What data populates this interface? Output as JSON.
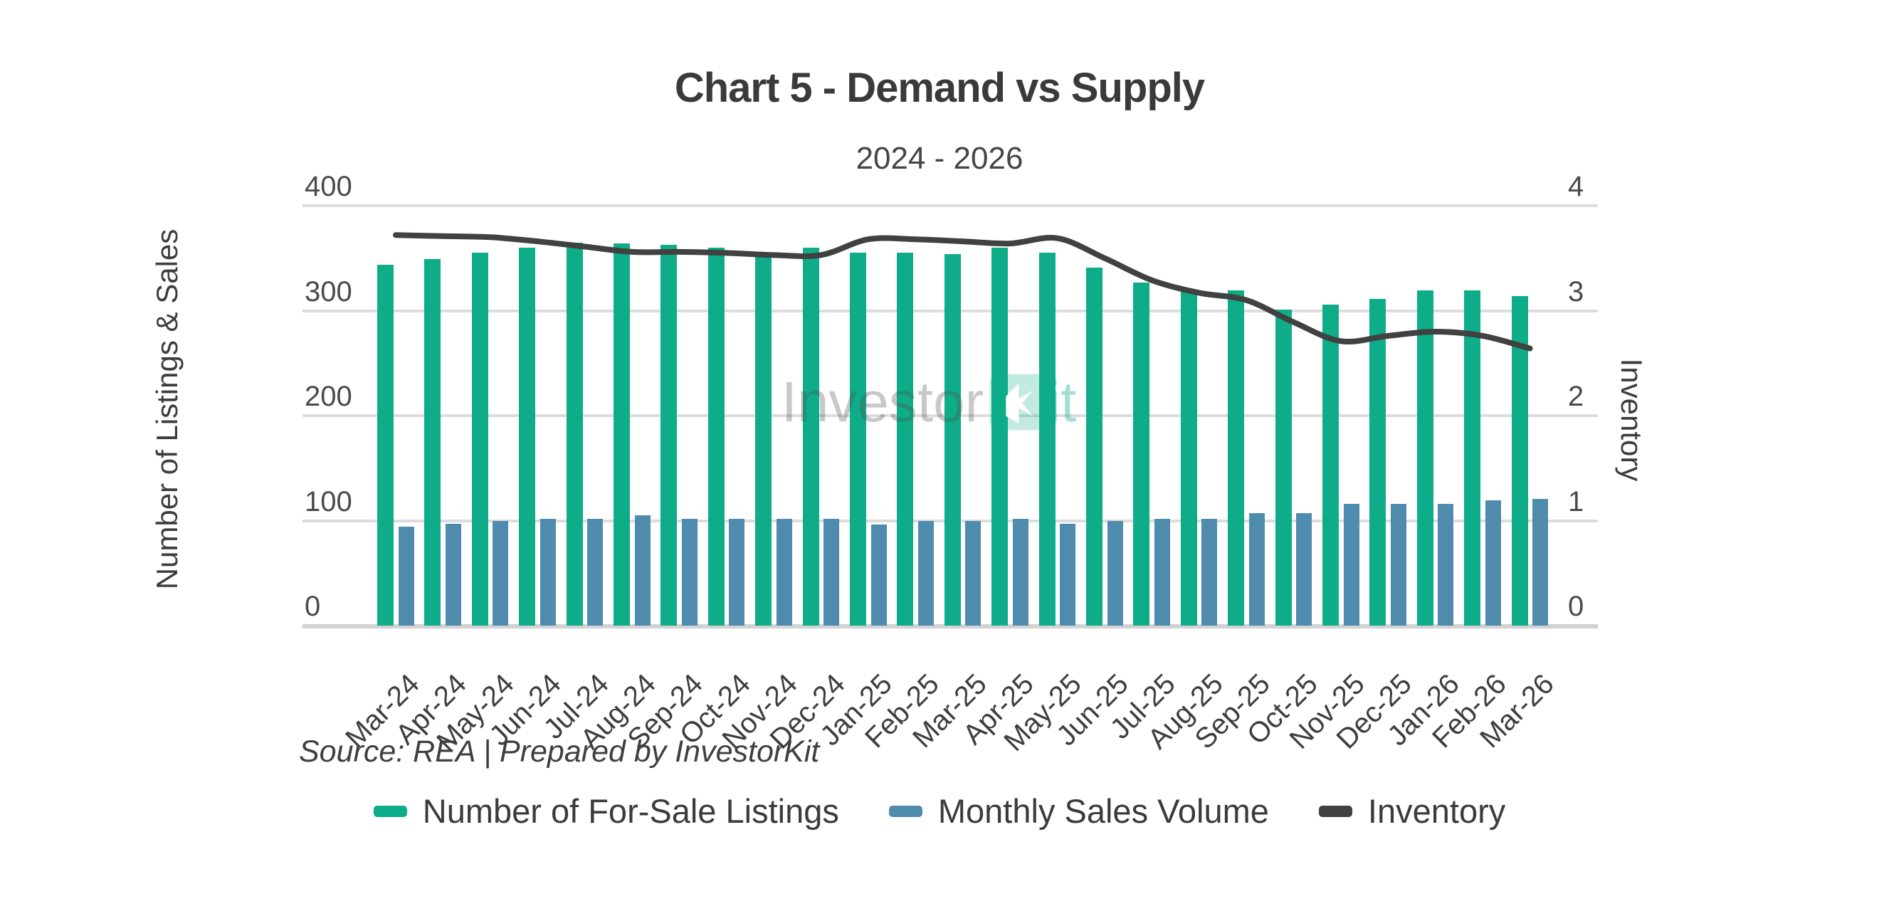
{
  "title": "Chart 5 - Demand vs Supply",
  "subtitle": "2024 - 2026",
  "source_note": "Source: REA | Prepared by InvestorKit",
  "watermark": {
    "gray_text": "Investor",
    "green_text": "it"
  },
  "axes": {
    "left_title": "Number of Listings & Sales",
    "right_title": "Inventory",
    "left_ticks": [
      "400",
      "300",
      "200",
      "100",
      "0"
    ],
    "right_ticks": [
      "4",
      "3",
      "2",
      "1",
      "0"
    ]
  },
  "legend": [
    {
      "label": "Number of For-Sale Listings",
      "color": "#0eac88"
    },
    {
      "label": "Monthly Sales Volume",
      "color": "#4e8bad"
    },
    {
      "label": "Inventory",
      "color": "#414141"
    }
  ],
  "colors": {
    "listings_bar": "#0eac88",
    "sales_bar": "#4e8bad",
    "inventory_line": "#414141",
    "gridline": "#dcdcdc",
    "text": "#3e3e3e"
  },
  "chart_data": {
    "type": "bar",
    "subtype": "combo-bar-line",
    "title": "Chart 5 - Demand vs Supply",
    "subtitle": "2024 - 2026",
    "xlabel": "",
    "ylabel_left": "Number of Listings & Sales",
    "ylabel_right": "Inventory",
    "ylim_left": [
      0,
      400
    ],
    "ylim_right": [
      0,
      4
    ],
    "grid": true,
    "legend_position": "bottom",
    "categories": [
      "Mar-24",
      "Apr-24",
      "May-24",
      "Jun-24",
      "Jul-24",
      "Aug-24",
      "Sep-24",
      "Oct-24",
      "Nov-24",
      "Dec-24",
      "Jan-25",
      "Feb-25",
      "Mar-25",
      "Apr-25",
      "May-25",
      "Jun-25",
      "Jul-25",
      "Aug-25",
      "Sep-25",
      "Oct-25",
      "Nov-25",
      "Dec-25",
      "Jan-26",
      "Feb-26",
      "Mar-26"
    ],
    "series": [
      {
        "name": "Number of For-Sale Listings",
        "type": "bar",
        "axis": "left",
        "values": [
          344,
          349,
          355,
          360,
          365,
          364,
          363,
          360,
          352,
          360,
          355,
          355,
          354,
          360,
          355,
          341,
          327,
          319,
          319,
          301,
          306,
          311,
          319,
          319,
          314
        ]
      },
      {
        "name": "Monthly Sales Volume",
        "type": "bar",
        "axis": "left",
        "values": [
          94,
          97,
          100,
          102,
          102,
          105,
          102,
          102,
          102,
          102,
          96,
          100,
          100,
          102,
          97,
          100,
          102,
          102,
          107,
          107,
          116,
          116,
          116,
          119,
          121
        ]
      },
      {
        "name": "Inventory",
        "type": "line",
        "axis": "right",
        "values": [
          3.72,
          3.71,
          3.7,
          3.66,
          3.61,
          3.56,
          3.56,
          3.55,
          3.53,
          3.53,
          3.68,
          3.68,
          3.66,
          3.64,
          3.69,
          3.5,
          3.29,
          3.17,
          3.1,
          2.89,
          2.71,
          2.76,
          2.8,
          2.76,
          2.64
        ]
      }
    ]
  }
}
